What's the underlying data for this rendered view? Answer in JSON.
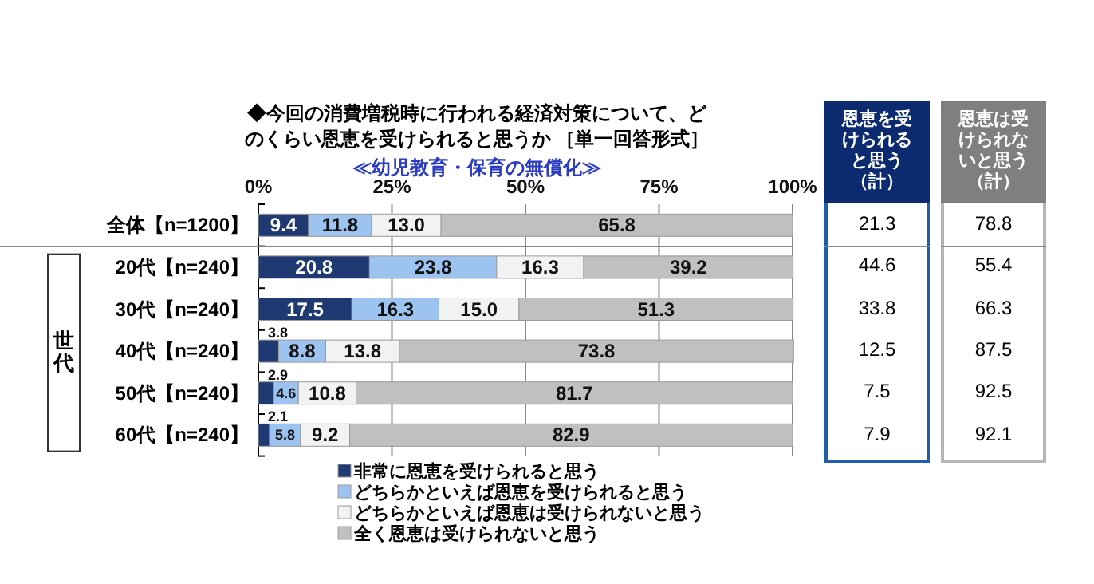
{
  "chart_data": {
    "type": "bar",
    "orientation": "horizontal",
    "stacked": true,
    "title": "◆今回の消費増税時に行われる経済対策について、どのくらい恩恵を受けられると思うか ［単一回答形式］",
    "subtitle": "≪幼児教育・保育の無償化≫",
    "categories": [
      "全体【n=1200】",
      "20代【n=240】",
      "30代【n=240】",
      "40代【n=240】",
      "50代【n=240】",
      "60代【n=240】"
    ],
    "series": [
      {
        "name": "非常に恩恵を受けられると思う",
        "color": "#1f3a73",
        "values": [
          9.4,
          20.8,
          17.5,
          3.8,
          2.9,
          2.1
        ],
        "value_labels": [
          "9.4",
          "20.8",
          "17.5",
          "3.8",
          "2.9",
          "2.1"
        ]
      },
      {
        "name": "どちらかといえば恩恵を受けられると思う",
        "color": "#9dc3f0",
        "values": [
          11.8,
          23.8,
          16.3,
          8.8,
          4.6,
          5.8
        ],
        "value_labels": [
          "11.8",
          "23.8",
          "16.3",
          "8.8",
          "4.6",
          "5.8"
        ]
      },
      {
        "name": "どちらかといえば恩恵は受けられないと思う",
        "color": "#f2f2f2",
        "values": [
          13.0,
          16.3,
          15.0,
          13.8,
          10.8,
          9.2
        ],
        "value_labels": [
          "13.0",
          "16.3",
          "15.0",
          "13.8",
          "10.8",
          "9.2"
        ]
      },
      {
        "name": "全く恩恵は受けられないと思う",
        "color": "#c0c0c0",
        "values": [
          65.8,
          39.2,
          51.3,
          73.8,
          81.7,
          82.9
        ],
        "value_labels": [
          "65.8",
          "39.2",
          "51.3",
          "73.8",
          "81.7",
          "82.9"
        ]
      }
    ],
    "xlim": [
      0,
      100
    ],
    "xticks": [
      {
        "value": 0,
        "label": "0%"
      },
      {
        "value": 25,
        "label": "25%"
      },
      {
        "value": 50,
        "label": "50%"
      },
      {
        "value": 75,
        "label": "75%"
      },
      {
        "value": 100,
        "label": "100%"
      }
    ],
    "grid": "x",
    "data_labels": true,
    "legend": "bottom",
    "annotations": [
      "世代",
      "恩恵を受けられると思う（計）",
      "恩恵は受けられないと思う（計）",
      "21.3",
      "78.8",
      "44.6",
      "55.4",
      "33.8",
      "66.3",
      "12.5",
      "87.5",
      "7.5",
      "92.5",
      "7.9",
      "92.1"
    ]
  }
}
